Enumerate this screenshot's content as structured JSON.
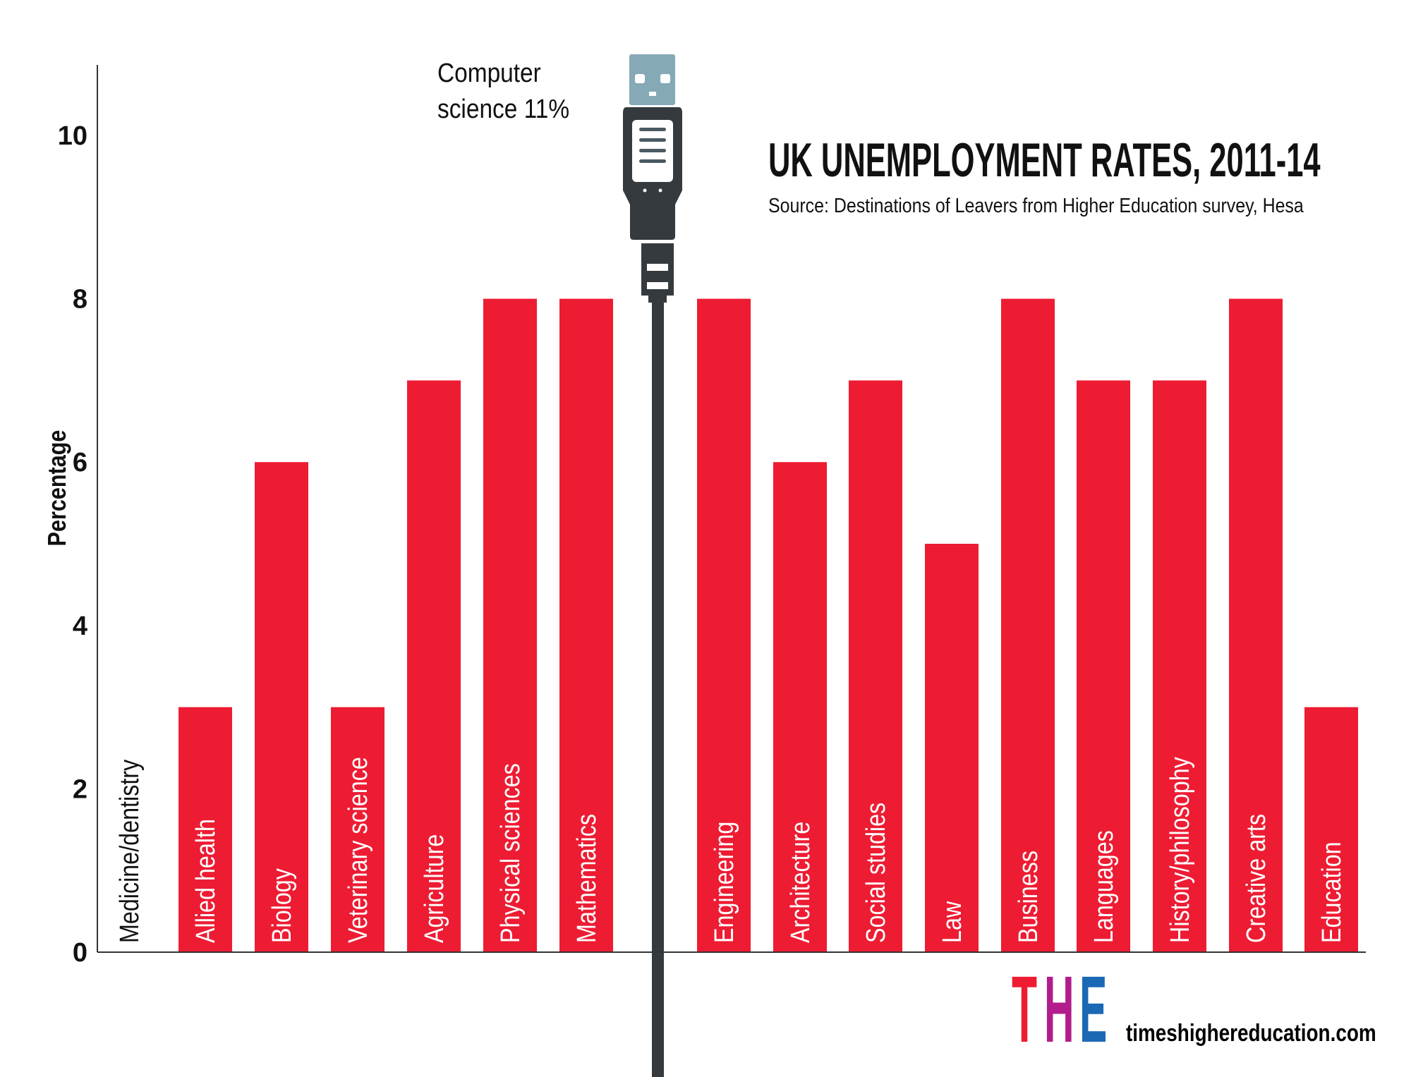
{
  "chart_data": {
    "type": "bar",
    "title": "UK UNEMPLOYMENT RATES, 2011-14",
    "subtitle": "Source: Destinations of Leavers from Higher Education survey, Hesa",
    "xlabel": "",
    "ylabel": "Percentage",
    "ylim": [
      0,
      10
    ],
    "yticks": [
      "0",
      "2",
      "4",
      "6",
      "8",
      "10"
    ],
    "grid": false,
    "categories": [
      "Medicine/dentistry",
      "Allied health",
      "Biology",
      "Veterinary science",
      "Agriculture",
      "Physical sciences",
      "Mathematics",
      "Computer science",
      "Engineering",
      "Architecture",
      "Social studies",
      "Law",
      "Business",
      "Languages",
      "History/philosophy",
      "Creative arts",
      "Education"
    ],
    "values": [
      0,
      3,
      6,
      3,
      7,
      8,
      8,
      11,
      8,
      6,
      7,
      5,
      8,
      7,
      7,
      8,
      3
    ],
    "annotation": {
      "line1": "Computer",
      "line2": "science 11%"
    },
    "colors": {
      "bar": "#ed1c33",
      "cable": "#343a3e",
      "plug": "#85a9b6",
      "axis": "#333333"
    }
  },
  "branding": {
    "logo_letters": [
      "T",
      "H",
      "E"
    ],
    "logo_colors": [
      "#ed1c33",
      "#b21c8c",
      "#1b69b4"
    ],
    "website": "timeshighereducation.com"
  }
}
